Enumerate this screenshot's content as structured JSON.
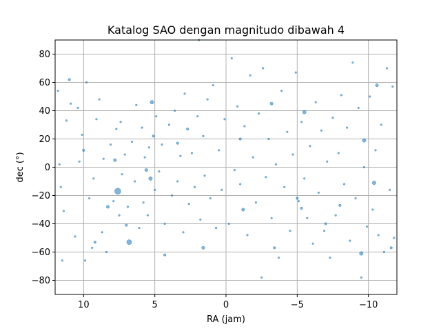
{
  "chart_data": {
    "type": "scatter",
    "title": "Katalog SAO dengan magnitudo dibawah 4",
    "xlabel": "RA (jam)",
    "ylabel": "dec (°)",
    "xlim": [
      12,
      -12
    ],
    "ylim": [
      -90,
      90
    ],
    "x_ticks": [
      10,
      5,
      0,
      -5,
      -10
    ],
    "x_tick_labels": [
      "10",
      "5",
      "0",
      "−5",
      "−10"
    ],
    "y_ticks": [
      -80,
      -60,
      -40,
      -20,
      0,
      20,
      40,
      60,
      80
    ],
    "y_tick_labels": [
      "−80",
      "−60",
      "−40",
      "−20",
      "0",
      "20",
      "40",
      "60",
      "80"
    ],
    "grid": true,
    "colors": {
      "points": "#1f77b4",
      "grid": "#b0b0b0"
    },
    "series": [
      {
        "points": [
          {
            "x": 7.6,
            "y": -17,
            "s": 5
          },
          {
            "x": 6.8,
            "y": -53,
            "s": 4
          },
          {
            "x": 5.2,
            "y": 46,
            "s": 3
          },
          {
            "x": 5.3,
            "y": -8,
            "s": 3
          },
          {
            "x": -5.5,
            "y": 39,
            "s": 3
          },
          {
            "x": -9.7,
            "y": 19,
            "s": 3
          },
          {
            "x": -10.4,
            "y": -11,
            "s": 3
          },
          {
            "x": -9.5,
            "y": -61,
            "s": 3
          },
          {
            "x": 1.6,
            "y": -57,
            "s": 2.5
          },
          {
            "x": -3.2,
            "y": 45,
            "s": 2.5
          },
          {
            "x": -1.2,
            "y": -30,
            "s": 2.5
          },
          {
            "x": 7.8,
            "y": 5,
            "s": 2.5
          },
          {
            "x": -10.6,
            "y": 58,
            "s": 2.5
          },
          {
            "x": 8.3,
            "y": -28,
            "s": 2.5
          },
          {
            "x": 5.6,
            "y": -2,
            "s": 2.5
          },
          {
            "x": 10,
            "y": 12,
            "s": 2
          },
          {
            "x": 11,
            "y": 62,
            "s": 2
          },
          {
            "x": 5.1,
            "y": 22,
            "s": 2
          },
          {
            "x": -1,
            "y": 20,
            "s": 2
          },
          {
            "x": -5,
            "y": -22,
            "s": 2
          },
          {
            "x": -7,
            "y": -40,
            "s": 2
          },
          {
            "x": -11.6,
            "y": -57,
            "s": 2
          },
          {
            "x": 9.2,
            "y": -53,
            "s": 2
          },
          {
            "x": 3.4,
            "y": 17,
            "s": 2
          },
          {
            "x": 4.3,
            "y": -62,
            "s": 2
          },
          {
            "x": -8,
            "y": -27,
            "s": 2
          },
          {
            "x": 7,
            "y": -41,
            "s": 2
          },
          {
            "x": -3.4,
            "y": -57,
            "s": 2
          },
          {
            "x": -5.3,
            "y": -29,
            "s": 2
          },
          {
            "x": 2.7,
            "y": 27,
            "s": 2
          },
          {
            "x": 11.8,
            "y": 54,
            "s": 1.5
          },
          {
            "x": 11.7,
            "y": 2,
            "s": 1.5
          },
          {
            "x": 11.6,
            "y": -14,
            "s": 1.5
          },
          {
            "x": 11.4,
            "y": -31,
            "s": 1.5
          },
          {
            "x": 11.5,
            "y": -66,
            "s": 1.5
          },
          {
            "x": 11.2,
            "y": 33,
            "s": 1.5
          },
          {
            "x": 10.9,
            "y": 45,
            "s": 1.5
          },
          {
            "x": 10.6,
            "y": -49,
            "s": 1.5
          },
          {
            "x": 10.4,
            "y": 42,
            "s": 1.5
          },
          {
            "x": 10.3,
            "y": 4,
            "s": 1.5
          },
          {
            "x": 10.1,
            "y": 23,
            "s": 1.5
          },
          {
            "x": 9.9,
            "y": -66,
            "s": 1.5
          },
          {
            "x": 9.8,
            "y": 60,
            "s": 1.5
          },
          {
            "x": 9.6,
            "y": -22,
            "s": 1.5
          },
          {
            "x": 9.4,
            "y": -57,
            "s": 1.5
          },
          {
            "x": 9.3,
            "y": -8,
            "s": 1.5
          },
          {
            "x": 9.1,
            "y": 34,
            "s": 1.5
          },
          {
            "x": 8.9,
            "y": 48,
            "s": 1.5
          },
          {
            "x": 8.7,
            "y": -46,
            "s": 1.5
          },
          {
            "x": 8.6,
            "y": 6,
            "s": 1.5
          },
          {
            "x": 8.4,
            "y": -60,
            "s": 1.5
          },
          {
            "x": 8.1,
            "y": 16,
            "s": 1.5
          },
          {
            "x": 7.9,
            "y": -24,
            "s": 1.5
          },
          {
            "x": 7.7,
            "y": 27,
            "s": 1.5
          },
          {
            "x": 7.5,
            "y": -34,
            "s": 1.5
          },
          {
            "x": 7.4,
            "y": 32,
            "s": 1.5
          },
          {
            "x": 7.3,
            "y": -5,
            "s": 1.5
          },
          {
            "x": 7.1,
            "y": 9,
            "s": 1.5
          },
          {
            "x": 6.9,
            "y": -28,
            "s": 1.5
          },
          {
            "x": 6.6,
            "y": 18,
            "s": 1.5
          },
          {
            "x": 6.4,
            "y": -10,
            "s": 1.5
          },
          {
            "x": 6.3,
            "y": 44,
            "s": 1.5
          },
          {
            "x": 6.1,
            "y": -43,
            "s": 1.5
          },
          {
            "x": 5.9,
            "y": 28,
            "s": 1.5
          },
          {
            "x": 5.8,
            "y": -25,
            "s": 1.5
          },
          {
            "x": 5.7,
            "y": 7,
            "s": 1.5
          },
          {
            "x": 5.5,
            "y": -34,
            "s": 1.5
          },
          {
            "x": 5.4,
            "y": 14,
            "s": 1.5
          },
          {
            "x": 5,
            "y": -16,
            "s": 1.5
          },
          {
            "x": 4.9,
            "y": 36,
            "s": 1.5
          },
          {
            "x": 4.7,
            "y": -3,
            "s": 1.5
          },
          {
            "x": 4.5,
            "y": 16,
            "s": 1.5
          },
          {
            "x": 4.3,
            "y": -40,
            "s": 1.5
          },
          {
            "x": 4,
            "y": 30,
            "s": 1.5
          },
          {
            "x": 3.8,
            "y": -20,
            "s": 1.5
          },
          {
            "x": 3.6,
            "y": 40,
            "s": 1.5
          },
          {
            "x": 3.4,
            "y": -10,
            "s": 1.5
          },
          {
            "x": 3.2,
            "y": 8,
            "s": 1.5
          },
          {
            "x": 3,
            "y": -46,
            "s": 1.5
          },
          {
            "x": 2.9,
            "y": 52,
            "s": 1.5
          },
          {
            "x": 2.6,
            "y": -26,
            "s": 1.5
          },
          {
            "x": 2.4,
            "y": 10,
            "s": 1.5
          },
          {
            "x": 2.2,
            "y": -14,
            "s": 1.5
          },
          {
            "x": 2,
            "y": 36,
            "s": 1.5
          },
          {
            "x": 1.9,
            "y": 90,
            "s": 1.5
          },
          {
            "x": 1.8,
            "y": -37,
            "s": 1.5
          },
          {
            "x": 1.6,
            "y": 22,
            "s": 1.5
          },
          {
            "x": 1.5,
            "y": -6,
            "s": 1.5
          },
          {
            "x": 1.3,
            "y": 48,
            "s": 1.5
          },
          {
            "x": 1.1,
            "y": -22,
            "s": 1.5
          },
          {
            "x": 0.9,
            "y": 58,
            "s": 1.5
          },
          {
            "x": 0.7,
            "y": -43,
            "s": 1.5
          },
          {
            "x": 0.5,
            "y": 12,
            "s": 1.5
          },
          {
            "x": 0.3,
            "y": -16,
            "s": 1.5
          },
          {
            "x": 0.1,
            "y": 34,
            "s": 1.5
          },
          {
            "x": -0.2,
            "y": -40,
            "s": 1.5
          },
          {
            "x": -0.4,
            "y": 77,
            "s": 1.5
          },
          {
            "x": -0.6,
            "y": -2,
            "s": 1.5
          },
          {
            "x": -0.8,
            "y": 43,
            "s": 1.5
          },
          {
            "x": -1,
            "y": -12,
            "s": 1.5
          },
          {
            "x": -1.3,
            "y": 29,
            "s": 1.5
          },
          {
            "x": -1.5,
            "y": -48,
            "s": 1.5
          },
          {
            "x": -1.7,
            "y": 65,
            "s": 1.5
          },
          {
            "x": -1.9,
            "y": 7,
            "s": 1.5
          },
          {
            "x": -2.1,
            "y": -25,
            "s": 1.5
          },
          {
            "x": -2.3,
            "y": 38,
            "s": 1.5
          },
          {
            "x": -2.5,
            "y": -78,
            "s": 1.5
          },
          {
            "x": -2.6,
            "y": 70,
            "s": 1.5
          },
          {
            "x": -2.8,
            "y": -7,
            "s": 1.5
          },
          {
            "x": -3,
            "y": 20,
            "s": 1.5
          },
          {
            "x": -3.2,
            "y": -36,
            "s": 1.5
          },
          {
            "x": -3.5,
            "y": 2,
            "s": 1.5
          },
          {
            "x": -3.7,
            "y": -64,
            "s": 1.5
          },
          {
            "x": -3.9,
            "y": 54,
            "s": 1.5
          },
          {
            "x": -4.1,
            "y": -14,
            "s": 1.5
          },
          {
            "x": -4.3,
            "y": 25,
            "s": 1.5
          },
          {
            "x": -4.5,
            "y": -45,
            "s": 1.5
          },
          {
            "x": -4.7,
            "y": 9,
            "s": 1.5
          },
          {
            "x": -4.9,
            "y": 67,
            "s": 1.5
          },
          {
            "x": -5.1,
            "y": -24,
            "s": 1.5
          },
          {
            "x": -5.3,
            "y": 32,
            "s": 1.5
          },
          {
            "x": -5.5,
            "y": -8,
            "s": 1.5
          },
          {
            "x": -5.7,
            "y": -36,
            "s": 1.5
          },
          {
            "x": -5.9,
            "y": 15,
            "s": 1.5
          },
          {
            "x": -6.1,
            "y": -54,
            "s": 1.5
          },
          {
            "x": -6.3,
            "y": 46,
            "s": 1.5
          },
          {
            "x": -6.5,
            "y": -18,
            "s": 1.5
          },
          {
            "x": -6.7,
            "y": 26,
            "s": 1.5
          },
          {
            "x": -6.9,
            "y": -45,
            "s": 1.5
          },
          {
            "x": -7.1,
            "y": 4,
            "s": 1.5
          },
          {
            "x": -7.3,
            "y": -64,
            "s": 1.5
          },
          {
            "x": -7.5,
            "y": 35,
            "s": 1.5
          },
          {
            "x": -7.7,
            "y": -34,
            "s": 1.5
          },
          {
            "x": -7.9,
            "y": 10,
            "s": 1.5
          },
          {
            "x": -8.1,
            "y": 51,
            "s": 1.5
          },
          {
            "x": -8.3,
            "y": -12,
            "s": 1.5
          },
          {
            "x": -8.5,
            "y": 28,
            "s": 1.5
          },
          {
            "x": -8.7,
            "y": -52,
            "s": 1.5
          },
          {
            "x": -8.9,
            "y": 74,
            "s": 1.5
          },
          {
            "x": -9.1,
            "y": -22,
            "s": 1.5
          },
          {
            "x": -9.3,
            "y": 42,
            "s": 1.5
          },
          {
            "x": -9.5,
            "y": -78,
            "s": 1.5
          },
          {
            "x": -9.7,
            "y": 0,
            "s": 1.5
          },
          {
            "x": -9.9,
            "y": -42,
            "s": 1.5
          },
          {
            "x": -10.1,
            "y": 50,
            "s": 1.5
          },
          {
            "x": -10.3,
            "y": -30,
            "s": 1.5
          },
          {
            "x": -10.5,
            "y": 12,
            "s": 1.5
          },
          {
            "x": -10.7,
            "y": -48,
            "s": 1.5
          },
          {
            "x": -10.9,
            "y": 30,
            "s": 1.5
          },
          {
            "x": -11.1,
            "y": -60,
            "s": 1.5
          },
          {
            "x": -11.3,
            "y": 70,
            "s": 1.5
          },
          {
            "x": -11.5,
            "y": -16,
            "s": 1.5
          },
          {
            "x": -11.7,
            "y": 57,
            "s": 1.5
          },
          {
            "x": -11.8,
            "y": -50,
            "s": 1.5
          }
        ]
      }
    ]
  }
}
